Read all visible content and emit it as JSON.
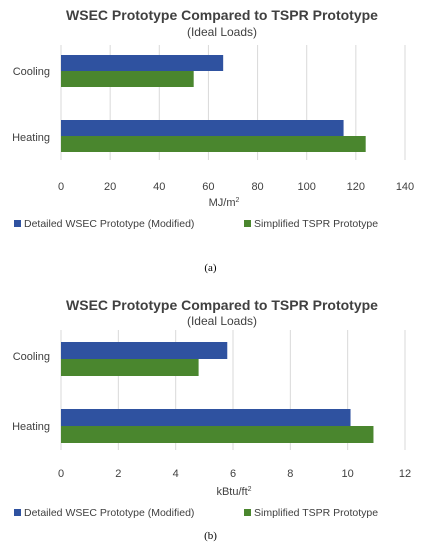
{
  "colors": {
    "series1": "#2F52A0",
    "series2": "#4A862E",
    "grid": "#d9d9d9",
    "text": "#404040"
  },
  "chart_data": [
    {
      "type": "bar",
      "orientation": "horizontal",
      "title": "WSEC Prototype Compared to TSPR Prototype",
      "subtitle": "(Ideal Loads)",
      "categories": [
        "Cooling",
        "Heating"
      ],
      "series": [
        {
          "name": "Detailed WSEC Prototype (Modified)",
          "values": [
            66,
            115
          ]
        },
        {
          "name": "Simplified TSPR Prototype",
          "values": [
            54,
            124
          ]
        }
      ],
      "xlabel": "MJ/m",
      "xlabel_sup": "2",
      "xlim": [
        0,
        140
      ],
      "xticks": [
        "0",
        "20",
        "40",
        "60",
        "80",
        "100",
        "120",
        "140"
      ],
      "xtick_values": [
        0,
        20,
        40,
        60,
        80,
        100,
        120,
        140
      ],
      "grid": "vertical",
      "legend": "bottom",
      "caption": "(a)"
    },
    {
      "type": "bar",
      "orientation": "horizontal",
      "title": "WSEC Prototype Compared to TSPR Prototype",
      "subtitle": "(Ideal Loads)",
      "categories": [
        "Cooling",
        "Heating"
      ],
      "series": [
        {
          "name": "Detailed WSEC Prototype (Modified)",
          "values": [
            5.8,
            10.1
          ]
        },
        {
          "name": "Simplified TSPR Prototype",
          "values": [
            4.8,
            10.9
          ]
        }
      ],
      "xlabel": "kBtu/ft",
      "xlabel_sup": "2",
      "xlim": [
        0,
        12
      ],
      "xticks": [
        "0",
        "2",
        "4",
        "6",
        "8",
        "10",
        "12"
      ],
      "xtick_values": [
        0,
        2,
        4,
        6,
        8,
        10,
        12
      ],
      "grid": "vertical",
      "legend": "bottom",
      "caption": "(b)"
    }
  ]
}
